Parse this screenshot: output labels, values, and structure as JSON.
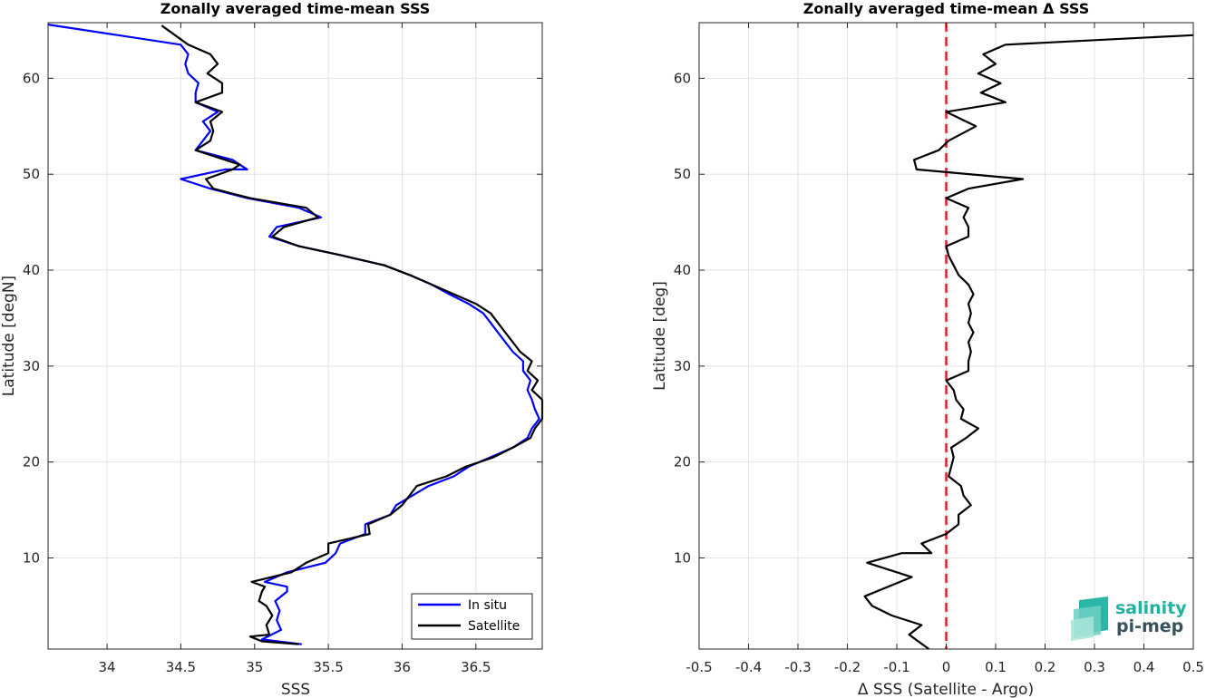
{
  "chart_data": [
    {
      "type": "line",
      "title": "Zonally averaged time-mean SSS",
      "xlabel": "SSS",
      "ylabel": "Latitude [degN]",
      "xlim": [
        33.6,
        36.95
      ],
      "ylim": [
        0.5,
        65.8
      ],
      "xticks": [
        "34",
        "34.5",
        "35",
        "35.5",
        "36",
        "36.5"
      ],
      "xtick_values": [
        34,
        34.5,
        35,
        35.5,
        36,
        36.5
      ],
      "yticks": [
        "10",
        "20",
        "30",
        "40",
        "50",
        "60"
      ],
      "ytick_values": [
        10,
        20,
        30,
        40,
        50,
        60
      ],
      "grid": true,
      "legend_position": "bottom-right",
      "series": [
        {
          "name": "In situ",
          "color": "#0000ff",
          "points": [
            [
              35.32,
              1.0
            ],
            [
              35.05,
              1.5
            ],
            [
              35.18,
              2.5
            ],
            [
              35.15,
              3.5
            ],
            [
              35.17,
              4.5
            ],
            [
              35.14,
              5.5
            ],
            [
              35.22,
              6.5
            ],
            [
              35.22,
              7.0
            ],
            [
              35.07,
              7.5
            ],
            [
              35.22,
              8.5
            ],
            [
              35.48,
              9.5
            ],
            [
              35.55,
              10.5
            ],
            [
              35.58,
              11.5
            ],
            [
              35.75,
              12.5
            ],
            [
              35.75,
              13.5
            ],
            [
              35.92,
              14.5
            ],
            [
              35.96,
              15.5
            ],
            [
              36.07,
              16.5
            ],
            [
              36.18,
              17.5
            ],
            [
              36.35,
              18.5
            ],
            [
              36.45,
              19.5
            ],
            [
              36.6,
              20.5
            ],
            [
              36.75,
              21.5
            ],
            [
              36.85,
              22.5
            ],
            [
              36.88,
              23.5
            ],
            [
              36.93,
              24.5
            ],
            [
              36.9,
              25.5
            ],
            [
              36.88,
              26.5
            ],
            [
              36.85,
              27.5
            ],
            [
              36.87,
              28.5
            ],
            [
              36.82,
              29.5
            ],
            [
              36.82,
              30.5
            ],
            [
              36.75,
              31.5
            ],
            [
              36.7,
              32.5
            ],
            [
              36.65,
              33.5
            ],
            [
              36.6,
              34.5
            ],
            [
              36.55,
              35.5
            ],
            [
              36.45,
              36.5
            ],
            [
              36.32,
              37.5
            ],
            [
              36.2,
              38.5
            ],
            [
              36.05,
              39.5
            ],
            [
              35.88,
              40.5
            ],
            [
              35.6,
              41.5
            ],
            [
              35.3,
              42.5
            ],
            [
              35.1,
              43.5
            ],
            [
              35.15,
              44.5
            ],
            [
              35.45,
              45.5
            ],
            [
              35.3,
              46.5
            ],
            [
              34.95,
              47.5
            ],
            [
              34.7,
              48.5
            ],
            [
              34.5,
              49.5
            ],
            [
              34.8,
              50.5
            ],
            [
              34.95,
              50.5
            ],
            [
              34.85,
              51.5
            ],
            [
              34.6,
              52.5
            ],
            [
              34.65,
              53.5
            ],
            [
              34.7,
              54.5
            ],
            [
              34.65,
              55.5
            ],
            [
              34.75,
              56.5
            ],
            [
              34.6,
              57.5
            ],
            [
              34.6,
              58.5
            ],
            [
              34.62,
              59.5
            ],
            [
              34.55,
              60.5
            ],
            [
              34.53,
              61.5
            ],
            [
              34.55,
              62.5
            ],
            [
              34.5,
              63.5
            ],
            [
              33.6,
              65.6
            ]
          ]
        },
        {
          "name": "Satellite",
          "color": "#000000",
          "points": [
            [
              35.3,
              1.0
            ],
            [
              35.05,
              1.3
            ],
            [
              34.97,
              1.8
            ],
            [
              35.1,
              2.0
            ],
            [
              35.08,
              3.0
            ],
            [
              35.12,
              4.0
            ],
            [
              35.08,
              5.0
            ],
            [
              35.03,
              5.5
            ],
            [
              35.05,
              6.5
            ],
            [
              35.07,
              7.0
            ],
            [
              34.98,
              7.5
            ],
            [
              35.25,
              8.5
            ],
            [
              35.35,
              9.5
            ],
            [
              35.5,
              10.5
            ],
            [
              35.5,
              11.5
            ],
            [
              35.78,
              12.5
            ],
            [
              35.77,
              13.5
            ],
            [
              35.92,
              14.5
            ],
            [
              36.0,
              15.5
            ],
            [
              36.05,
              16.5
            ],
            [
              36.1,
              17.5
            ],
            [
              36.3,
              18.5
            ],
            [
              36.43,
              19.5
            ],
            [
              36.62,
              20.5
            ],
            [
              36.75,
              21.5
            ],
            [
              36.87,
              22.5
            ],
            [
              36.9,
              23.5
            ],
            [
              36.95,
              24.5
            ],
            [
              36.95,
              25.5
            ],
            [
              36.95,
              26.5
            ],
            [
              36.88,
              27.5
            ],
            [
              36.92,
              28.5
            ],
            [
              36.85,
              29.5
            ],
            [
              36.88,
              30.5
            ],
            [
              36.8,
              31.5
            ],
            [
              36.75,
              32.5
            ],
            [
              36.7,
              33.5
            ],
            [
              36.65,
              34.5
            ],
            [
              36.6,
              35.5
            ],
            [
              36.5,
              36.5
            ],
            [
              36.35,
              37.5
            ],
            [
              36.2,
              38.5
            ],
            [
              36.05,
              39.5
            ],
            [
              35.88,
              40.5
            ],
            [
              35.6,
              41.5
            ],
            [
              35.3,
              42.5
            ],
            [
              35.12,
              43.5
            ],
            [
              35.2,
              44.5
            ],
            [
              35.43,
              45.5
            ],
            [
              35.35,
              46.5
            ],
            [
              34.97,
              47.5
            ],
            [
              34.72,
              48.5
            ],
            [
              34.67,
              49.5
            ],
            [
              34.85,
              50.5
            ],
            [
              34.9,
              51.0
            ],
            [
              34.8,
              51.5
            ],
            [
              34.6,
              52.5
            ],
            [
              34.7,
              53.5
            ],
            [
              34.72,
              54.5
            ],
            [
              34.7,
              55.5
            ],
            [
              34.78,
              56.5
            ],
            [
              34.6,
              57.5
            ],
            [
              34.78,
              58.5
            ],
            [
              34.78,
              59.5
            ],
            [
              34.68,
              60.5
            ],
            [
              34.75,
              61.5
            ],
            [
              34.7,
              62.5
            ],
            [
              34.55,
              63.5
            ],
            [
              34.37,
              65.5
            ]
          ]
        }
      ]
    },
    {
      "type": "line",
      "title": "Zonally averaged time-mean Δ SSS",
      "xlabel": "Δ SSS (Satellite - Argo)",
      "ylabel": "Latitude [deg]",
      "xlim": [
        -0.5,
        0.5
      ],
      "ylim": [
        0.5,
        65.8
      ],
      "xticks": [
        "-0.5",
        "-0.4",
        "-0.3",
        "-0.2",
        "-0.1",
        "0",
        "0.1",
        "0.2",
        "0.3",
        "0.4",
        "0.5"
      ],
      "xtick_values": [
        -0.5,
        -0.4,
        -0.3,
        -0.2,
        -0.1,
        0,
        0.1,
        0.2,
        0.3,
        0.4,
        0.5
      ],
      "yticks": [
        "10",
        "20",
        "30",
        "40",
        "50",
        "60"
      ],
      "ytick_values": [
        10,
        20,
        30,
        40,
        50,
        60
      ],
      "grid": true,
      "reference_line": {
        "x": 0,
        "color": "#e02020",
        "style": "dashed"
      },
      "series": [
        {
          "color": "#000000",
          "points": [
            [
              -0.035,
              0.5
            ],
            [
              -0.075,
              2.0
            ],
            [
              -0.05,
              3.0
            ],
            [
              -0.11,
              4.0
            ],
            [
              -0.15,
              5.0
            ],
            [
              -0.165,
              6.0
            ],
            [
              -0.07,
              8.0
            ],
            [
              -0.16,
              9.5
            ],
            [
              -0.09,
              10.5
            ],
            [
              -0.03,
              10.5
            ],
            [
              -0.05,
              11.5
            ],
            [
              0.0,
              12.5
            ],
            [
              0.025,
              13.5
            ],
            [
              0.025,
              14.5
            ],
            [
              0.05,
              15.5
            ],
            [
              0.035,
              16.5
            ],
            [
              0.03,
              17.5
            ],
            [
              0.005,
              18.5
            ],
            [
              0.01,
              19.5
            ],
            [
              0.015,
              20.5
            ],
            [
              0.01,
              21.5
            ],
            [
              0.04,
              22.5
            ],
            [
              0.065,
              23.5
            ],
            [
              0.03,
              24.5
            ],
            [
              0.035,
              25.5
            ],
            [
              0.02,
              26.5
            ],
            [
              0.015,
              27.5
            ],
            [
              0.0,
              28.5
            ],
            [
              0.045,
              29.5
            ],
            [
              0.045,
              30.5
            ],
            [
              0.05,
              31.5
            ],
            [
              0.045,
              32.5
            ],
            [
              0.055,
              33.5
            ],
            [
              0.045,
              34.5
            ],
            [
              0.05,
              35.5
            ],
            [
              0.045,
              36.5
            ],
            [
              0.055,
              37.5
            ],
            [
              0.045,
              38.5
            ],
            [
              0.025,
              39.5
            ],
            [
              0.015,
              40.5
            ],
            [
              0.005,
              41.5
            ],
            [
              0.0,
              42.5
            ],
            [
              0.045,
              43.5
            ],
            [
              0.045,
              44.5
            ],
            [
              0.035,
              45.5
            ],
            [
              0.045,
              46.5
            ],
            [
              0.0,
              47.5
            ],
            [
              0.045,
              48.5
            ],
            [
              0.155,
              49.5
            ],
            [
              -0.06,
              50.5
            ],
            [
              -0.065,
              51.5
            ],
            [
              -0.015,
              52.5
            ],
            [
              0.005,
              53.5
            ],
            [
              0.06,
              55.0
            ],
            [
              0.0,
              56.5
            ],
            [
              0.12,
              57.5
            ],
            [
              0.07,
              58.5
            ],
            [
              0.11,
              59.5
            ],
            [
              0.065,
              60.5
            ],
            [
              0.1,
              61.5
            ],
            [
              0.075,
              62.5
            ],
            [
              0.12,
              63.5
            ],
            [
              0.5,
              64.5
            ]
          ]
        }
      ]
    }
  ],
  "legend": {
    "items": [
      "In situ",
      "Satellite"
    ]
  },
  "logo": {
    "line1": "salinity",
    "line2": "pi-mep"
  }
}
